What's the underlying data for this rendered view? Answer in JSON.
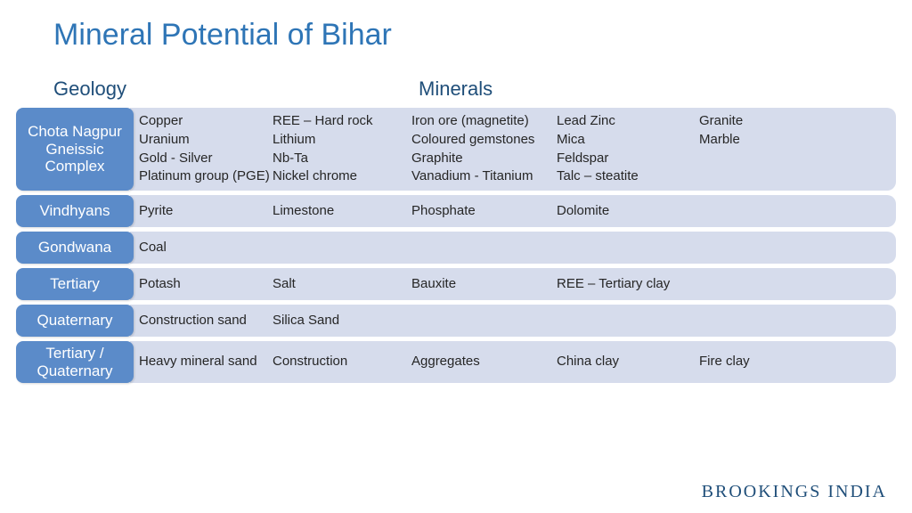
{
  "title": "Mineral Potential of Bihar",
  "headers": {
    "geology": "Geology",
    "minerals": "Minerals"
  },
  "colors": {
    "title": "#2e75b6",
    "header_text": "#1f4e79",
    "label_bg": "#5b8bc9",
    "label_text": "#ffffff",
    "content_bg": "#d6dcec",
    "content_text": "#262626",
    "footer_text": "#1f4e79",
    "background": "#ffffff"
  },
  "rows": [
    {
      "label": "Chota Nagpur Gneissic Complex",
      "minerals": [
        "Copper",
        "REE – Hard rock",
        "Iron ore (magnetite)",
        "Lead Zinc",
        "Granite",
        "Uranium",
        "Lithium",
        "Coloured gemstones",
        "Mica",
        "Marble",
        "Gold - Silver",
        "Nb-Ta",
        "Graphite",
        "Feldspar",
        "",
        "Platinum group (PGE)",
        "Nickel chrome",
        "Vanadium - Titanium",
        "Talc – steatite",
        ""
      ]
    },
    {
      "label": "Vindhyans",
      "minerals": [
        "Pyrite",
        "Limestone",
        "Phosphate",
        "Dolomite",
        ""
      ]
    },
    {
      "label": "Gondwana",
      "minerals": [
        "Coal",
        "",
        "",
        "",
        ""
      ]
    },
    {
      "label": "Tertiary",
      "minerals": [
        "Potash",
        "Salt",
        "Bauxite",
        "REE – Tertiary clay",
        ""
      ]
    },
    {
      "label": "Quaternary",
      "minerals": [
        "Construction sand",
        "Silica Sand",
        "",
        "",
        ""
      ]
    },
    {
      "label": "Tertiary / Quaternary",
      "minerals": [
        "Heavy mineral sand",
        "Construction",
        "Aggregates",
        "China clay",
        "Fire clay"
      ]
    }
  ],
  "footer": "BROOKINGS INDIA"
}
